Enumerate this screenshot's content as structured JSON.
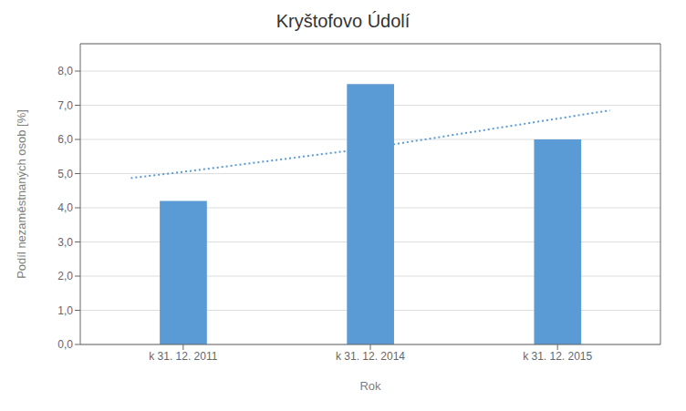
{
  "chart_data": {
    "type": "bar",
    "title": "Kryštofovo Údolí",
    "xlabel": "Rok",
    "ylabel": "Podíl nezaměstnaných osob [%]",
    "categories": [
      "k 31. 12. 2011",
      "k 31. 12. 2014",
      "k 31. 12. 2015"
    ],
    "series": [
      {
        "type": "bar",
        "values": [
          4.2,
          7.62,
          6.0
        ],
        "color": "#5B9BD5"
      },
      {
        "type": "line",
        "x": [
          -0.28,
          0.0,
          1.0,
          2.28
        ],
        "values": [
          4.87,
          5.05,
          5.75,
          6.85
        ],
        "color": "#5B9BD5",
        "line_style": "dotted"
      }
    ],
    "xlim": [
      -0.55,
      2.55
    ],
    "ylim": [
      0.0,
      8.8
    ],
    "yticks": [
      {
        "value": 0.0,
        "label": "0,0"
      },
      {
        "value": 1.0,
        "label": "1,0"
      },
      {
        "value": 2.0,
        "label": "2,0"
      },
      {
        "value": 3.0,
        "label": "3,0"
      },
      {
        "value": 4.0,
        "label": "4,0"
      },
      {
        "value": 5.0,
        "label": "5,0"
      },
      {
        "value": 6.0,
        "label": "6,0"
      },
      {
        "value": 7.0,
        "label": "7,0"
      },
      {
        "value": 8.0,
        "label": "8,0"
      }
    ],
    "grid": "y"
  }
}
